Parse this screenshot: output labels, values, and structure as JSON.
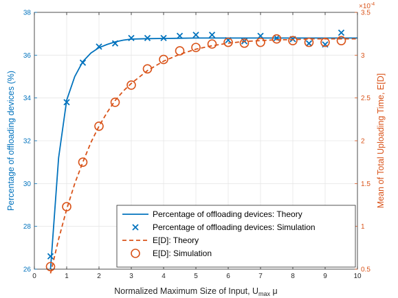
{
  "chart_data": {
    "type": "line",
    "x_axis": {
      "label": "Normalized Maximum Size of Input, U",
      "label_sub": "max",
      "label_tail": " μ",
      "ticks": [
        "0",
        "1",
        "2",
        "3",
        "4",
        "5",
        "6",
        "7",
        "8",
        "9",
        "10"
      ],
      "range": [
        0,
        10
      ]
    },
    "y_left": {
      "label": "Percentage of offloading devices (%)",
      "ticks": [
        "26",
        "28",
        "30",
        "32",
        "34",
        "36",
        "38"
      ],
      "range": [
        26,
        38
      ],
      "color": "#0072BD"
    },
    "y_right": {
      "label": "Mean of Total Uploading Time, E[D]",
      "ticks": [
        "0.5",
        "1",
        "1.5",
        "2",
        "2.5",
        "3",
        "3.5"
      ],
      "range": [
        0.5,
        3.5
      ],
      "multiplier": "×10",
      "exponent": "-4",
      "color": "#D95319"
    },
    "grid": true,
    "legend_position": "bottom-right",
    "series": [
      {
        "name": "Percentage of offloading devices: Theory",
        "axis": "left",
        "style": "solid",
        "marker": "none",
        "color": "#0072BD",
        "x": [
          0.5,
          0.75,
          1.0,
          1.25,
          1.5,
          1.75,
          2.0,
          2.25,
          2.5,
          2.75,
          3.0,
          3.5,
          4.0,
          5.0,
          6.0,
          7.0,
          8.0,
          9.0,
          10.0
        ],
        "y": [
          26.0,
          31.2,
          33.9,
          35.0,
          35.7,
          36.1,
          36.35,
          36.5,
          36.62,
          36.7,
          36.75,
          36.77,
          36.78,
          36.8,
          36.8,
          36.8,
          36.8,
          36.8,
          36.8
        ]
      },
      {
        "name": "Percentage of offloading devices: Simulation",
        "axis": "left",
        "style": "none",
        "marker": "x",
        "color": "#0072BD",
        "x": [
          0.5,
          1.0,
          1.5,
          2.0,
          2.5,
          3.0,
          3.5,
          4.0,
          4.5,
          5.0,
          5.5,
          6.0,
          6.5,
          7.0,
          7.5,
          8.0,
          8.5,
          9.0,
          9.5
        ],
        "y": [
          26.6,
          33.8,
          35.65,
          36.4,
          36.55,
          36.8,
          36.8,
          36.8,
          36.9,
          36.95,
          36.95,
          36.7,
          36.65,
          36.9,
          36.8,
          36.75,
          36.55,
          36.5,
          37.05
        ]
      },
      {
        "name": "E[D]: Theory",
        "axis": "right",
        "style": "dashed",
        "marker": "none",
        "color": "#D95319",
        "x": [
          0.5,
          0.75,
          1.0,
          1.25,
          1.5,
          1.75,
          2.0,
          2.25,
          2.5,
          2.75,
          3.0,
          3.5,
          4.0,
          4.5,
          5.0,
          5.5,
          6.0,
          6.5,
          7.0,
          7.5,
          8.0,
          8.5,
          9.0,
          9.5,
          10.0
        ],
        "y": [
          0.45,
          0.85,
          1.2,
          1.5,
          1.75,
          1.98,
          2.17,
          2.33,
          2.47,
          2.58,
          2.67,
          2.82,
          2.93,
          3.01,
          3.07,
          3.11,
          3.14,
          3.16,
          3.17,
          3.18,
          3.18,
          3.19,
          3.19,
          3.19,
          3.19
        ]
      },
      {
        "name": "E[D]: Simulation",
        "axis": "right",
        "style": "none",
        "marker": "o",
        "color": "#D95319",
        "x": [
          0.5,
          1.0,
          1.5,
          2.0,
          2.5,
          3.0,
          3.5,
          4.0,
          4.5,
          5.0,
          5.5,
          6.0,
          6.5,
          7.0,
          7.5,
          8.0,
          8.5,
          9.0,
          9.5
        ],
        "y": [
          0.53,
          1.23,
          1.75,
          2.17,
          2.45,
          2.65,
          2.84,
          2.95,
          3.05,
          3.09,
          3.13,
          3.15,
          3.14,
          3.15,
          3.19,
          3.17,
          3.15,
          3.15,
          3.17
        ]
      }
    ]
  }
}
